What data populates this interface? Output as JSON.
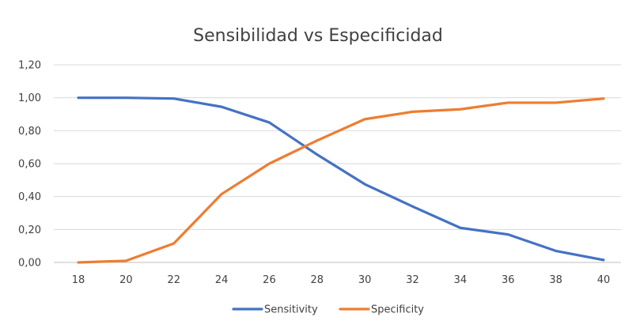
{
  "chart_data": {
    "type": "line",
    "title": "Sensibilidad vs Especificidad",
    "xlabel": "",
    "ylabel": "",
    "x": [
      18,
      20,
      22,
      24,
      26,
      28,
      30,
      32,
      34,
      36,
      38,
      40
    ],
    "x_tick_labels": [
      "18",
      "20",
      "22",
      "24",
      "26",
      "28",
      "30",
      "32",
      "34",
      "36",
      "38",
      "40"
    ],
    "ylim": [
      0,
      1.2
    ],
    "y_ticks": [
      0,
      0.2,
      0.4,
      0.6,
      0.8,
      1.0,
      1.2
    ],
    "y_tick_labels": [
      "0,00",
      "0,20",
      "0,40",
      "0,60",
      "0,80",
      "1,00",
      "1,20"
    ],
    "grid": true,
    "legend_position": "bottom",
    "series": [
      {
        "name": "Sensitivity",
        "color": "#4472c4",
        "values": [
          1.0,
          1.0,
          0.995,
          0.945,
          0.85,
          0.655,
          0.475,
          0.34,
          0.21,
          0.17,
          0.07,
          0.015
        ]
      },
      {
        "name": "Specificity",
        "color": "#ed7d31",
        "values": [
          0.0,
          0.01,
          0.115,
          0.415,
          0.6,
          0.74,
          0.87,
          0.915,
          0.93,
          0.97,
          0.97,
          0.995
        ]
      }
    ]
  }
}
